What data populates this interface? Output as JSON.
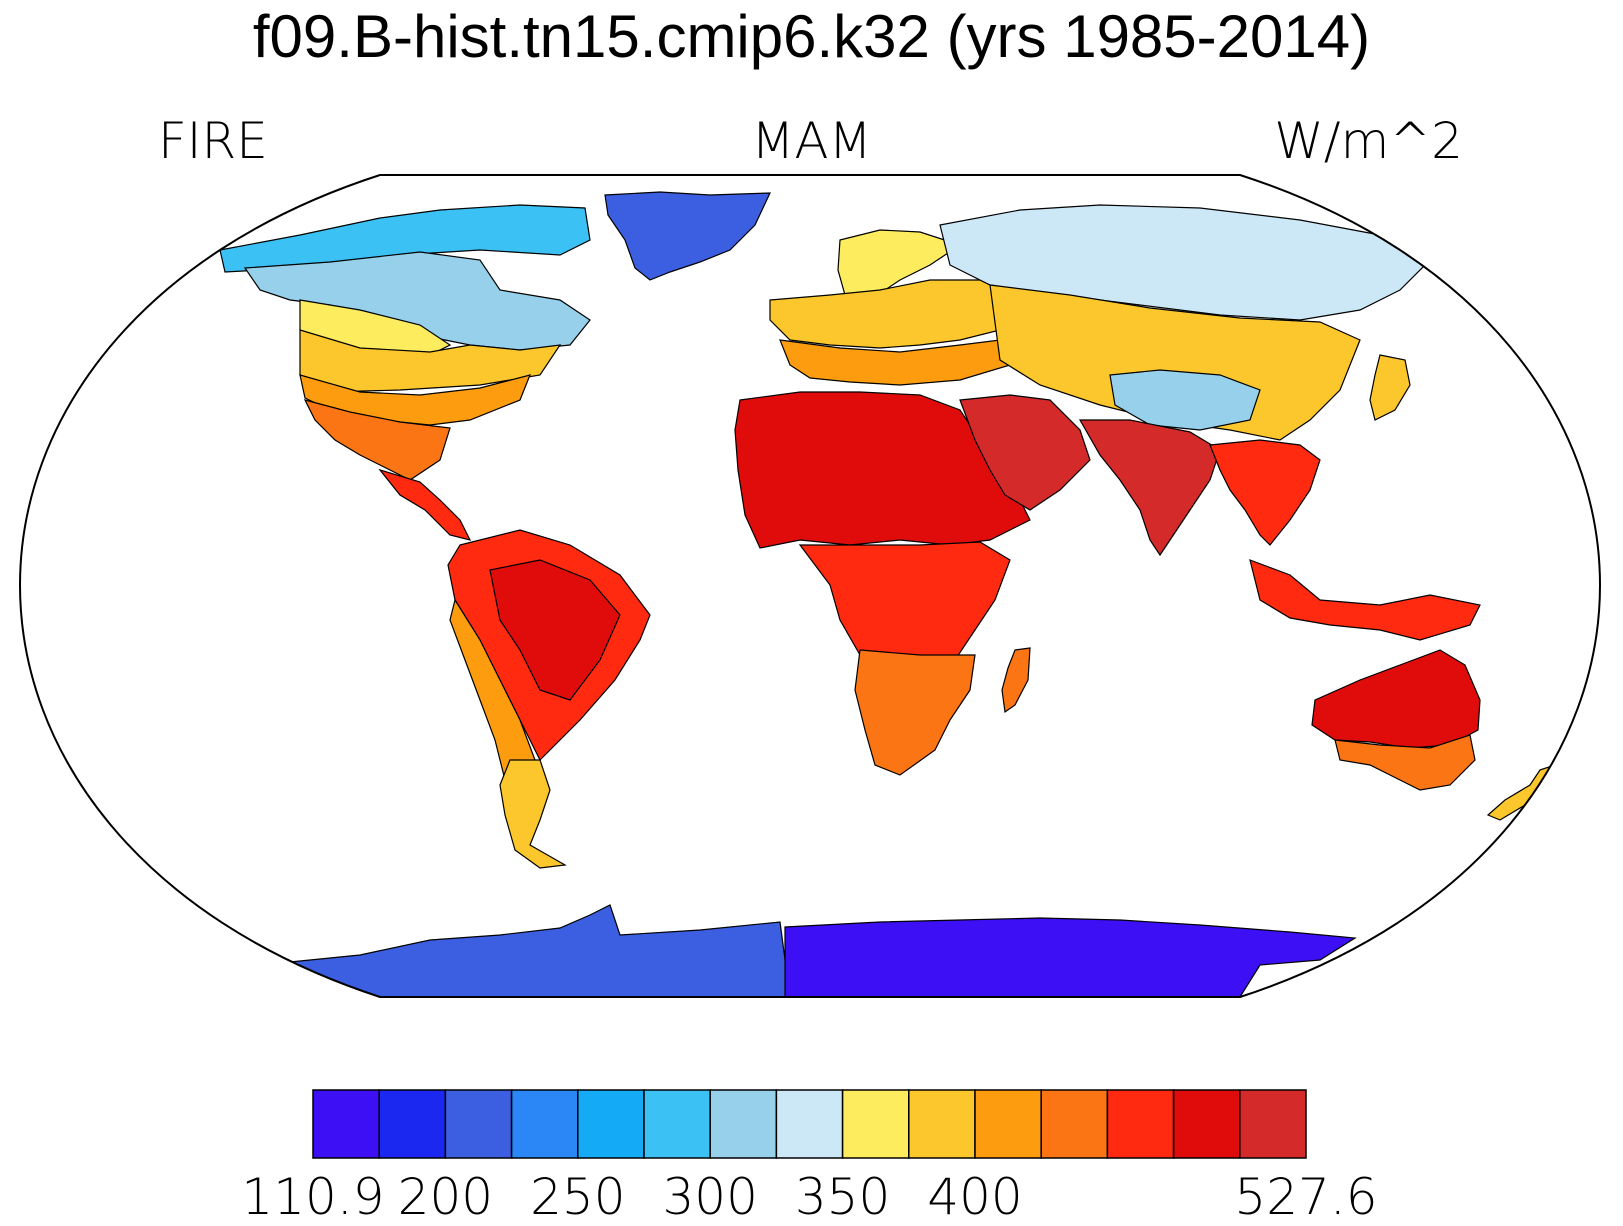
{
  "title": "f09.B-hist.tn15.cmip6.k32 (yrs 1985-2014)",
  "left_label": "FIRE",
  "center_label": "MAM",
  "right_label": "W/m^2",
  "colorbar": {
    "colors": [
      "#3d0ff5",
      "#1a28f0",
      "#3b5fe0",
      "#2b87f5",
      "#14aaf5",
      "#3cc1f5",
      "#96d0ea",
      "#cce8f7",
      "#fcec5e",
      "#fcc72c",
      "#fc9c0e",
      "#fc7514",
      "#ff2a10",
      "#e00c0c",
      "#d42a2a"
    ],
    "tick_labels": [
      {
        "text": "110.9",
        "index": 0
      },
      {
        "text": "200",
        "index": 2
      },
      {
        "text": "250",
        "index": 4
      },
      {
        "text": "300",
        "index": 6
      },
      {
        "text": "350",
        "index": 8
      },
      {
        "text": "400",
        "index": 10
      },
      {
        "text": "527.6",
        "index": 15
      }
    ]
  },
  "map": {
    "projection": "robinson",
    "regions": [
      {
        "name": "antarctica-west",
        "color": "#3b5fe0"
      },
      {
        "name": "antarctica-east",
        "color": "#3d0ff5"
      },
      {
        "name": "greenland",
        "color": "#3b5fe0"
      },
      {
        "name": "canada-arctic",
        "color": "#3cc1f5"
      },
      {
        "name": "canada",
        "color": "#96d0ea"
      },
      {
        "name": "usa-north",
        "color": "#fcec5e"
      },
      {
        "name": "usa",
        "color": "#fcc72c"
      },
      {
        "name": "usa-south",
        "color": "#fc9c0e"
      },
      {
        "name": "mexico",
        "color": "#fc7514"
      },
      {
        "name": "central-america",
        "color": "#ff2a10"
      },
      {
        "name": "south-america",
        "color": "#ff2a10"
      },
      {
        "name": "amazon",
        "color": "#e00c0c"
      },
      {
        "name": "andes",
        "color": "#fc9c0e"
      },
      {
        "name": "patagonia",
        "color": "#fcc72c"
      },
      {
        "name": "scandinavia",
        "color": "#fcec5e"
      },
      {
        "name": "europe",
        "color": "#fcc72c"
      },
      {
        "name": "mediterranean",
        "color": "#fc9c0e"
      },
      {
        "name": "siberia",
        "color": "#cce8f7"
      },
      {
        "name": "asia-mid",
        "color": "#fcc72c"
      },
      {
        "name": "tibet",
        "color": "#96d0ea"
      },
      {
        "name": "north-africa",
        "color": "#e00c0c"
      },
      {
        "name": "central-africa",
        "color": "#ff2a10"
      },
      {
        "name": "southern-africa",
        "color": "#fc7514"
      },
      {
        "name": "arabia",
        "color": "#d42a2a"
      },
      {
        "name": "india",
        "color": "#d42a2a"
      },
      {
        "name": "southeast-asia",
        "color": "#ff2a10"
      },
      {
        "name": "indonesia",
        "color": "#ff2a10"
      },
      {
        "name": "australia",
        "color": "#e00c0c"
      },
      {
        "name": "australia-south",
        "color": "#fc7514"
      },
      {
        "name": "new-zealand",
        "color": "#fcc72c"
      },
      {
        "name": "madagascar",
        "color": "#fc7514"
      },
      {
        "name": "japan",
        "color": "#fcc72c"
      }
    ]
  }
}
